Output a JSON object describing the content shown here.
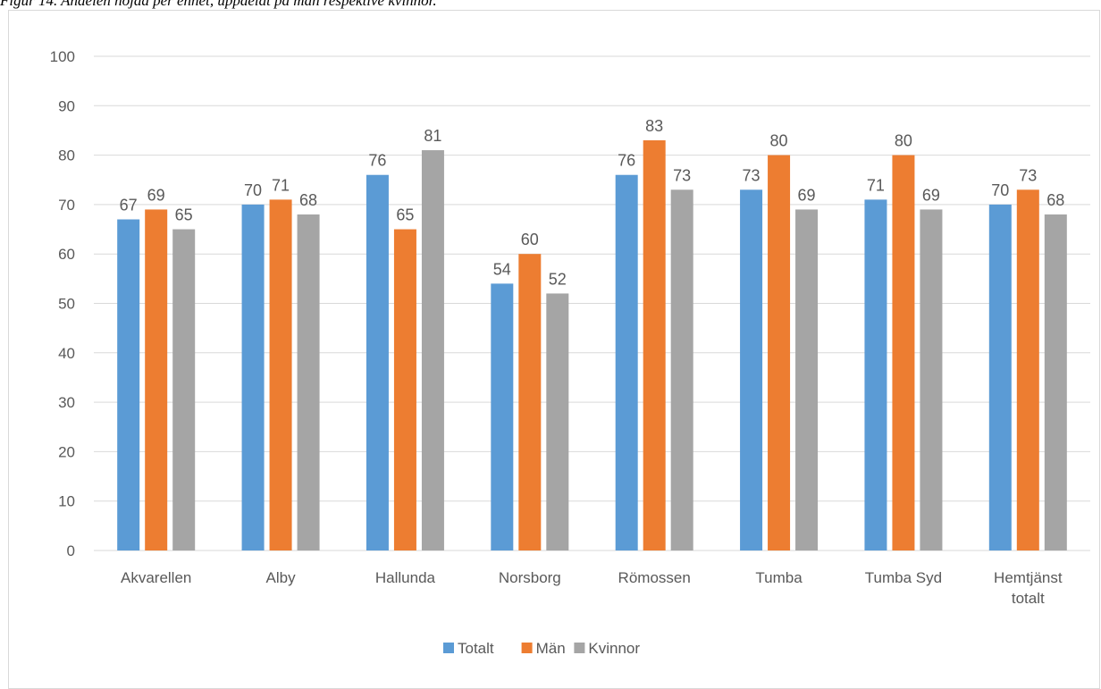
{
  "caption": "Figur 14. Andelen nöjda per enhet, uppdelat på män respektive kvinnor.",
  "chart_data": {
    "type": "bar",
    "title": "",
    "xlabel": "",
    "ylabel": "",
    "ylim": [
      0,
      100
    ],
    "yticks": [
      0,
      10,
      20,
      30,
      40,
      50,
      60,
      70,
      80,
      90,
      100
    ],
    "grid": true,
    "legend_position": "bottom",
    "categories": [
      [
        "Akvarellen"
      ],
      [
        "Alby"
      ],
      [
        "Hallunda"
      ],
      [
        "Norsborg"
      ],
      [
        "Römossen"
      ],
      [
        "Tumba"
      ],
      [
        "Tumba Syd"
      ],
      [
        "Hemtjänst",
        "totalt"
      ]
    ],
    "series": [
      {
        "name": "Totalt",
        "color": "#5b9bd5",
        "values": [
          67,
          70,
          76,
          54,
          76,
          73,
          71,
          70
        ]
      },
      {
        "name": "Män",
        "color": "#ed7d31",
        "values": [
          69,
          71,
          65,
          60,
          83,
          80,
          80,
          73
        ]
      },
      {
        "name": "Kvinnor",
        "color": "#a5a5a5",
        "values": [
          65,
          68,
          81,
          52,
          73,
          69,
          69,
          68
        ]
      }
    ]
  }
}
